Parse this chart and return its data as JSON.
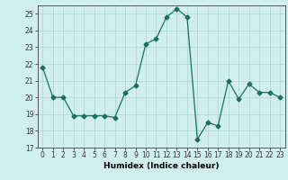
{
  "x": [
    0,
    1,
    2,
    3,
    4,
    5,
    6,
    7,
    8,
    9,
    10,
    11,
    12,
    13,
    14,
    15,
    16,
    17,
    18,
    19,
    20,
    21,
    22,
    23
  ],
  "y": [
    21.8,
    20.0,
    20.0,
    18.9,
    18.9,
    18.9,
    18.9,
    18.8,
    20.3,
    20.7,
    23.2,
    23.5,
    24.8,
    25.3,
    24.8,
    17.5,
    18.5,
    18.3,
    21.0,
    19.9,
    20.8,
    20.3,
    20.3,
    20.0
  ],
  "line_color": "#1a7060",
  "marker": "D",
  "marker_size": 2.5,
  "bg_color": "#d0eeee",
  "grid_color": "#b0d8d8",
  "xlabel": "Humidex (Indice chaleur)",
  "ylim": [
    17,
    25.5
  ],
  "xlim": [
    -0.5,
    23.5
  ],
  "yticks": [
    17,
    18,
    19,
    20,
    21,
    22,
    23,
    24,
    25
  ],
  "xticks": [
    0,
    1,
    2,
    3,
    4,
    5,
    6,
    7,
    8,
    9,
    10,
    11,
    12,
    13,
    14,
    15,
    16,
    17,
    18,
    19,
    20,
    21,
    22,
    23
  ],
  "fontsize_label": 6.5,
  "fontsize_tick": 5.5
}
